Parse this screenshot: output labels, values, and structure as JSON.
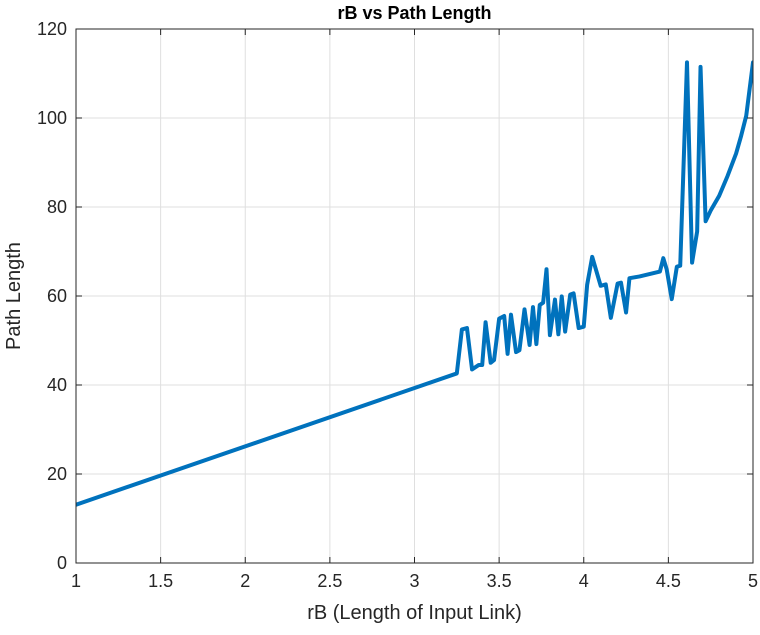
{
  "chart_data": {
    "type": "line",
    "title": "rB vs Path Length",
    "xlabel": "rB (Length of Input Link)",
    "ylabel": "Path Length",
    "xlim": [
      1,
      5
    ],
    "ylim": [
      0,
      120
    ],
    "xticks": [
      1,
      1.5,
      2,
      2.5,
      3,
      3.5,
      4,
      4.5,
      5
    ],
    "xtick_labels": [
      "1",
      "1.5",
      "2",
      "2.5",
      "3",
      "3.5",
      "4",
      "4.5",
      "5"
    ],
    "yticks": [
      0,
      20,
      40,
      60,
      80,
      100,
      120
    ],
    "ytick_labels": [
      "0",
      "20",
      "40",
      "60",
      "80",
      "100",
      "120"
    ],
    "grid": true,
    "box": true,
    "series": [
      {
        "color": "#0072BD",
        "x": [
          1.0,
          3.25,
          3.28,
          3.31,
          3.34,
          3.38,
          3.4,
          3.42,
          3.45,
          3.47,
          3.5,
          3.53,
          3.55,
          3.57,
          3.6,
          3.62,
          3.65,
          3.68,
          3.7,
          3.72,
          3.74,
          3.76,
          3.78,
          3.8,
          3.83,
          3.85,
          3.87,
          3.89,
          3.92,
          3.94,
          3.97,
          4.0,
          4.02,
          4.05,
          4.1,
          4.13,
          4.16,
          4.2,
          4.22,
          4.25,
          4.27,
          4.3,
          4.33,
          4.45,
          4.47,
          4.49,
          4.52,
          4.55,
          4.57,
          4.61,
          4.64,
          4.67,
          4.69,
          4.72,
          4.75,
          4.8,
          4.85,
          4.9,
          4.93,
          4.96,
          5.0
        ],
        "y": [
          13.1,
          42.6,
          52.5,
          52.8,
          43.5,
          44.5,
          44.5,
          54.1,
          45.0,
          45.6,
          54.9,
          55.5,
          47.0,
          55.8,
          47.4,
          47.8,
          57.0,
          49.0,
          57.5,
          49.2,
          58.0,
          58.5,
          66.0,
          51.2,
          59.2,
          51.4,
          59.9,
          52.0,
          60.3,
          60.6,
          52.8,
          53.1,
          62.5,
          68.8,
          62.3,
          62.6,
          55.1,
          62.8,
          63.0,
          56.3,
          64.0,
          64.2,
          64.4,
          65.5,
          68.5,
          66.0,
          59.3,
          66.6,
          66.8,
          112.5,
          67.5,
          74.5,
          111.5,
          76.8,
          79.2,
          82.5,
          87.0,
          92.0,
          96.0,
          100.5,
          112.5
        ]
      }
    ]
  }
}
